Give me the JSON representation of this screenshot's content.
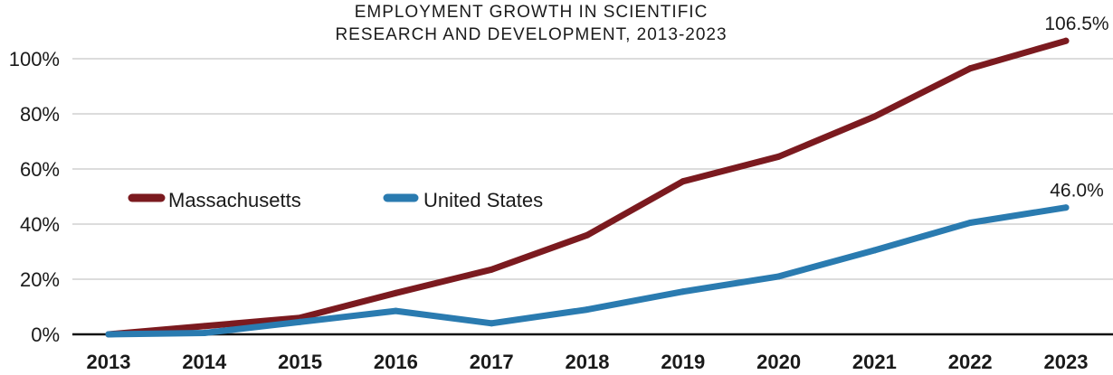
{
  "chart_data": {
    "type": "line",
    "title": [
      "EMPLOYMENT GROWTH IN SCIENTIFIC",
      "RESEARCH AND DEVELOPMENT, 2013-2023"
    ],
    "categories": [
      "2013",
      "2014",
      "2015",
      "2016",
      "2017",
      "2018",
      "2019",
      "2020",
      "2021",
      "2022",
      "2023"
    ],
    "ylim": [
      0,
      100
    ],
    "yticks": [
      0,
      20,
      40,
      60,
      80,
      100
    ],
    "ytick_labels": [
      "0%",
      "20%",
      "40%",
      "60%",
      "80%",
      "100%"
    ],
    "grid": true,
    "legend_position": "left, mid-height",
    "series": [
      {
        "name": "Massachusetts",
        "color": "#7b1a1f",
        "values": [
          0,
          3,
          6,
          15,
          23.5,
          36,
          55.5,
          64.5,
          79,
          96.5,
          106.5
        ],
        "end_label": "106.5%"
      },
      {
        "name": "United States",
        "color": "#2a7bb0",
        "values": [
          0,
          0.5,
          4.5,
          8.5,
          4,
          9,
          15.5,
          21,
          30.5,
          40.5,
          46.0
        ],
        "end_label": "46.0%"
      }
    ]
  }
}
